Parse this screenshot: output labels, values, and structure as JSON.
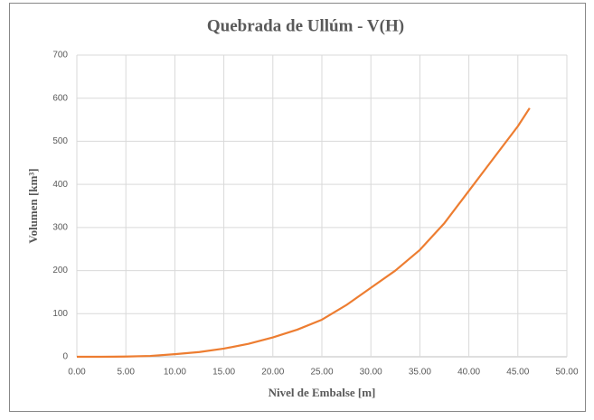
{
  "chart_data": {
    "type": "line",
    "title": "Quebrada de Ullúm - V(H)",
    "x_label": "Nivel de Embalse [m]",
    "y_label": "Volumen [km³]",
    "x": [
      0,
      2.5,
      5,
      7.5,
      10,
      12.5,
      15,
      17.5,
      20,
      22.5,
      25,
      27.5,
      30,
      32.5,
      35,
      37.5,
      40,
      42.5,
      45,
      46.2
    ],
    "series": [
      {
        "name": "V(H)",
        "color": "#ed7d31",
        "values": [
          0,
          0,
          0.5,
          2,
          6,
          11,
          19,
          30,
          45,
          63,
          86,
          120,
          160,
          200,
          248,
          310,
          385,
          460,
          535,
          577
        ]
      }
    ],
    "xlim": [
      0,
      50
    ],
    "xticks": [
      {
        "value": 0,
        "label": "0.00"
      },
      {
        "value": 5,
        "label": "5.00"
      },
      {
        "value": 10,
        "label": "10.00"
      },
      {
        "value": 15,
        "label": "15.00"
      },
      {
        "value": 20,
        "label": "20.00"
      },
      {
        "value": 25,
        "label": "25.00"
      },
      {
        "value": 30,
        "label": "30.00"
      },
      {
        "value": 35,
        "label": "35.00"
      },
      {
        "value": 40,
        "label": "40.00"
      },
      {
        "value": 45,
        "label": "45.00"
      },
      {
        "value": 50,
        "label": "50.00"
      }
    ],
    "ylim": [
      0,
      700
    ],
    "yticks": [
      0,
      100,
      200,
      300,
      400,
      500,
      600,
      700
    ],
    "grid": true
  }
}
